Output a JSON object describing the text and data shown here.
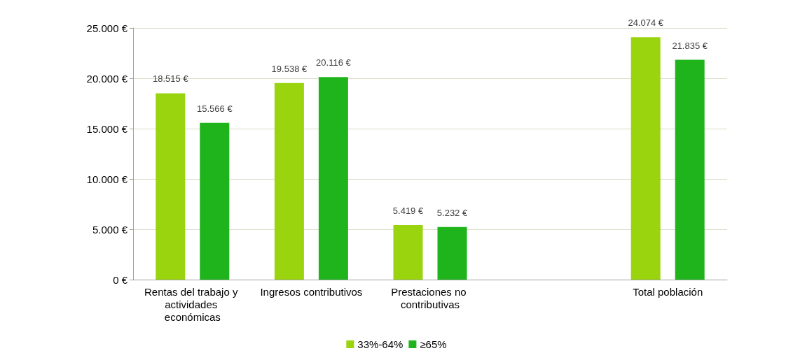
{
  "chart_data": {
    "type": "bar",
    "categories": [
      "Rentas del trabajo y actividades económicas",
      "Ingresos contributivos",
      "Prestaciones no contributivas",
      null,
      "Total población"
    ],
    "series": [
      {
        "name": "33%-64%",
        "color": "#99d40f",
        "values": [
          18515,
          19538,
          5419,
          null,
          24074
        ],
        "value_labels": [
          "18.515 €",
          "19.538 €",
          "5.419 €",
          null,
          "24.074 €"
        ]
      },
      {
        "name": "≥65%",
        "color": "#1fb41c",
        "values": [
          15566,
          20116,
          5232,
          null,
          21835
        ],
        "value_labels": [
          "15.566 €",
          "20.116 €",
          "5.232 €",
          null,
          "21.835 €"
        ]
      }
    ],
    "ylim": [
      0,
      25000
    ],
    "yticks": [
      {
        "value": 0,
        "label": "0 €"
      },
      {
        "value": 5000,
        "label": "5.000 €"
      },
      {
        "value": 10000,
        "label": "10.000 €"
      },
      {
        "value": 15000,
        "label": "15.000 €"
      },
      {
        "value": 20000,
        "label": "20.000 €"
      },
      {
        "value": 25000,
        "label": "25.000 €"
      }
    ],
    "grid": "y",
    "legend": "bottom"
  }
}
